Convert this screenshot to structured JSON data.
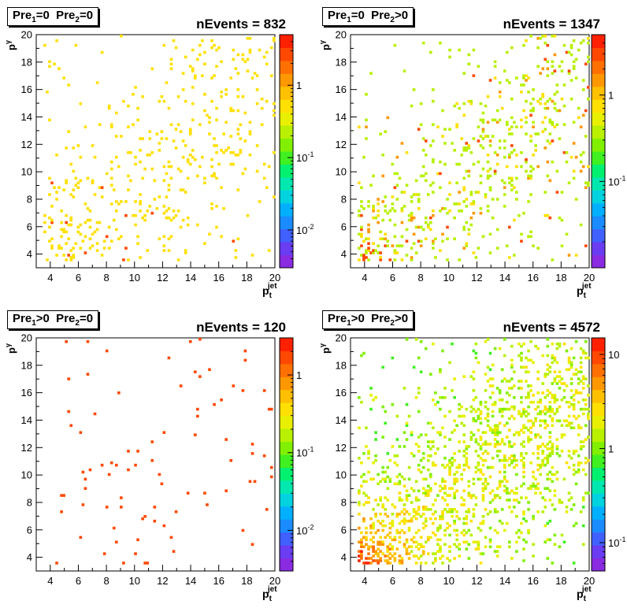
{
  "chart_data": [
    {
      "type": "heatmap",
      "title_parts": [
        "Pre",
        "1",
        "=0  Pre",
        "2",
        "=0"
      ],
      "nevents_label": "nEvents = 832",
      "xlabel": "p",
      "xlabel_sub": "t",
      "xlabel_sup": "jet",
      "ylabel": "p",
      "ylabel_sup": "γ",
      "ylabel_sub": "t",
      "xlim": [
        3,
        20
      ],
      "ylim": [
        3,
        20
      ],
      "x_ticks": [
        "4",
        "6",
        "8",
        "10",
        "12",
        "14",
        "16",
        "18",
        "20"
      ],
      "y_ticks": [
        "4",
        "6",
        "8",
        "10",
        "12",
        "14",
        "16",
        "18",
        "20"
      ],
      "z_scale": "log",
      "z_ticks": [
        "1",
        "10^-1",
        "10^-2"
      ],
      "z_range": [
        0.003,
        5
      ],
      "n_events": 832,
      "dominant_color": "#ffe000"
    },
    {
      "type": "heatmap",
      "title_parts": [
        "Pre",
        "1",
        "=0  Pre",
        "2",
        ">0"
      ],
      "nevents_label": "nEvents = 1347",
      "xlabel": "p",
      "xlabel_sub": "t",
      "xlabel_sup": "jet",
      "ylabel": "p",
      "ylabel_sup": "γ",
      "ylabel_sub": "t",
      "xlim": [
        3,
        20
      ],
      "ylim": [
        3,
        20
      ],
      "x_ticks": [
        "4",
        "6",
        "8",
        "10",
        "12",
        "14",
        "16",
        "18",
        "20"
      ],
      "y_ticks": [
        "4",
        "6",
        "8",
        "10",
        "12",
        "14",
        "16",
        "18",
        "20"
      ],
      "z_scale": "log",
      "z_ticks": [
        "1",
        "10^-1"
      ],
      "z_range": [
        0.01,
        5
      ],
      "n_events": 1347,
      "dominant_color": "#8ef000"
    },
    {
      "type": "heatmap",
      "title_parts": [
        "Pre",
        "1",
        ">0  Pre",
        "2",
        "=0"
      ],
      "nevents_label": "nEvents = 120",
      "xlabel": "p",
      "xlabel_sub": "t",
      "xlabel_sup": "jet",
      "ylabel": "p",
      "ylabel_sup": "γ",
      "ylabel_sub": "t",
      "xlim": [
        3,
        20
      ],
      "ylim": [
        3,
        20
      ],
      "x_ticks": [
        "4",
        "6",
        "8",
        "10",
        "12",
        "14",
        "16",
        "18",
        "20"
      ],
      "y_ticks": [
        "4",
        "6",
        "8",
        "10",
        "12",
        "14",
        "16",
        "18",
        "20"
      ],
      "z_scale": "log",
      "z_ticks": [
        "1",
        "10^-1",
        "10^-2"
      ],
      "z_range": [
        0.003,
        3
      ],
      "n_events": 120,
      "dominant_color": "#ff3a1a"
    },
    {
      "type": "heatmap",
      "title_parts": [
        "Pre",
        "1",
        ">0  Pre",
        "2",
        ">0"
      ],
      "nevents_label": "nEvents = 4572",
      "xlabel": "p",
      "xlabel_sub": "t",
      "xlabel_sup": "jet",
      "ylabel": "p",
      "ylabel_sup": "γ",
      "ylabel_sub": "t",
      "xlim": [
        3,
        20
      ],
      "ylim": [
        3,
        20
      ],
      "x_ticks": [
        "4",
        "6",
        "8",
        "10",
        "12",
        "14",
        "16",
        "18",
        "20"
      ],
      "y_ticks": [
        "4",
        "6",
        "8",
        "10",
        "12",
        "14",
        "16",
        "18",
        "20"
      ],
      "z_scale": "log",
      "z_ticks": [
        "10",
        "1",
        "10^-1"
      ],
      "z_range": [
        0.05,
        15
      ],
      "n_events": 4572,
      "dominant_color": "#8ef000"
    }
  ]
}
